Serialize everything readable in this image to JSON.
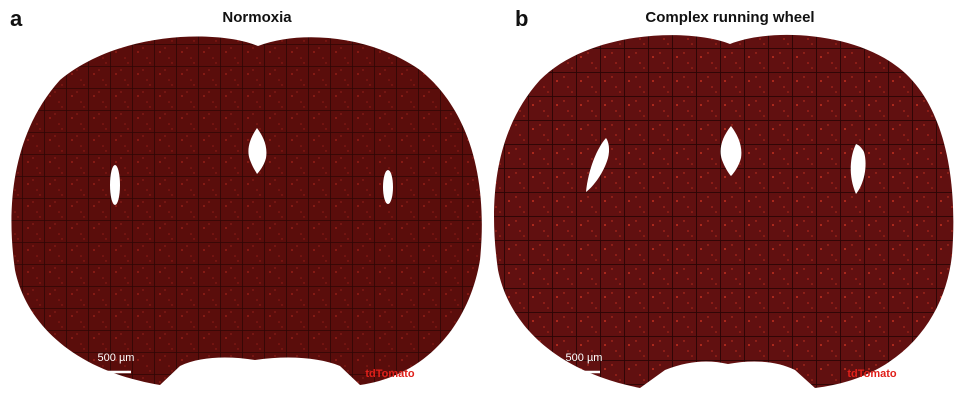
{
  "panels": [
    {
      "letter": "a",
      "title": "Normoxia",
      "scale_bar": "500 µm",
      "marker": "tdTomato"
    },
    {
      "letter": "b",
      "title": "Complex running wheel",
      "scale_bar": "500 µm",
      "marker": "tdTomato"
    }
  ]
}
